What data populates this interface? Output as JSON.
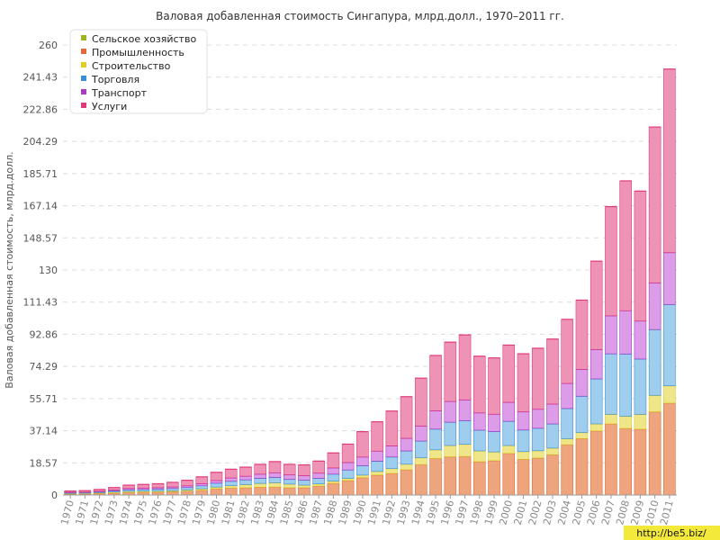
{
  "chart_data": {
    "type": "bar",
    "stacked": true,
    "title": "Валовая добавленная стоимость Сингапура, млрд.долл., 1970–2011 гг.",
    "ylabel": "Валовая добавленная стоимость, млрд.долл.",
    "xlabel": "",
    "ylim": [
      0,
      260
    ],
    "yticks": [
      "0",
      "18.57",
      "37.14",
      "55.71",
      "74.29",
      "92.86",
      "111.43",
      "130",
      "148.57",
      "167.14",
      "185.71",
      "204.29",
      "222.86",
      "241.43",
      "260"
    ],
    "grid": true,
    "legend_position": "top-left",
    "categories": [
      "1970",
      "1971",
      "1972",
      "1973",
      "1974",
      "1975",
      "1976",
      "1977",
      "1978",
      "1979",
      "1980",
      "1981",
      "1982",
      "1983",
      "1984",
      "1985",
      "1986",
      "1987",
      "1988",
      "1989",
      "1990",
      "1991",
      "1992",
      "1993",
      "1994",
      "1995",
      "1996",
      "1997",
      "1998",
      "1999",
      "2000",
      "2001",
      "2002",
      "2003",
      "2004",
      "2005",
      "2006",
      "2007",
      "2008",
      "2009",
      "2010",
      "2011"
    ],
    "series": [
      {
        "name": "Сельское хозяйство",
        "color": "#b6d62a",
        "border": "#9ab51f",
        "values": [
          0.1,
          0.1,
          0.1,
          0.1,
          0.1,
          0.1,
          0.1,
          0.1,
          0.1,
          0.1,
          0.1,
          0.1,
          0.1,
          0.1,
          0.1,
          0.1,
          0.1,
          0.1,
          0.1,
          0.1,
          0.1,
          0.1,
          0.1,
          0.1,
          0.1,
          0.1,
          0.1,
          0.1,
          0.1,
          0.1,
          0.1,
          0.1,
          0.1,
          0.1,
          0.1,
          0.1,
          0.1,
          0.1,
          0.1,
          0.1,
          0.1,
          0.1
        ]
      },
      {
        "name": "Промышленность",
        "color": "#eea47c",
        "border": "#e06a3c",
        "values": [
          0.5,
          0.6,
          0.8,
          1.1,
          1.4,
          1.5,
          1.6,
          1.8,
          2.1,
          2.7,
          3.5,
          4.0,
          4.1,
          4.4,
          4.5,
          4.1,
          4.2,
          5.1,
          6.7,
          8.3,
          10.0,
          11.5,
          12.4,
          14.5,
          17.5,
          21.0,
          22.0,
          22.2,
          19.2,
          19.8,
          24.0,
          20.5,
          21.3,
          23.2,
          29.0,
          32.5,
          37.0,
          41.0,
          38.4,
          38.0,
          48.0,
          53.0
        ]
      },
      {
        "name": "Строительство",
        "color": "#eee688",
        "border": "#dccd2a",
        "values": [
          0.3,
          0.3,
          0.4,
          0.5,
          0.6,
          0.6,
          0.6,
          0.6,
          0.7,
          0.8,
          1.0,
          1.3,
          1.8,
          2.2,
          2.5,
          2.1,
          1.4,
          1.2,
          1.2,
          1.2,
          1.4,
          2.0,
          2.8,
          3.2,
          3.9,
          5.0,
          6.5,
          7.0,
          6.2,
          5.0,
          4.5,
          4.5,
          4.2,
          3.8,
          3.4,
          3.5,
          4.0,
          5.5,
          7.0,
          8.5,
          9.5,
          10.0
        ]
      },
      {
        "name": "Торговля",
        "color": "#9fcdee",
        "border": "#3b8ed6",
        "values": [
          0.4,
          0.4,
          0.5,
          0.7,
          1.0,
          1.1,
          1.2,
          1.3,
          1.5,
          1.8,
          2.3,
          2.6,
          2.8,
          3.0,
          3.1,
          2.8,
          2.9,
          3.3,
          4.1,
          4.9,
          5.5,
          6.0,
          6.7,
          7.7,
          9.7,
          12.0,
          13.5,
          13.7,
          12.0,
          11.8,
          14.0,
          12.5,
          13.0,
          14.0,
          17.5,
          21.0,
          26.0,
          35.0,
          36.0,
          32.0,
          38.0,
          47.0
        ]
      },
      {
        "name": "Транспорт",
        "color": "#dd9ce8",
        "border": "#a63ec4",
        "values": [
          0.3,
          0.3,
          0.4,
          0.5,
          0.7,
          0.8,
          0.8,
          0.9,
          1.0,
          1.2,
          1.5,
          1.9,
          2.1,
          2.4,
          2.7,
          2.6,
          2.6,
          3.0,
          3.6,
          4.3,
          5.0,
          5.8,
          6.4,
          7.3,
          8.7,
          10.6,
          12.0,
          12.0,
          10.0,
          10.0,
          11.0,
          10.5,
          11.0,
          11.5,
          14.5,
          15.5,
          17.0,
          22.0,
          25.0,
          22.0,
          27.0,
          30.0
        ]
      },
      {
        "name": "Услуги",
        "color": "#ef93b6",
        "border": "#e03a7a",
        "values": [
          0.7,
          0.8,
          1.0,
          1.4,
          1.9,
          2.0,
          2.2,
          2.6,
          3.1,
          3.9,
          4.7,
          5.0,
          5.2,
          5.6,
          6.4,
          6.0,
          6.2,
          6.9,
          8.6,
          10.6,
          14.6,
          16.9,
          20.1,
          24.0,
          27.6,
          31.9,
          34.2,
          37.5,
          32.7,
          32.5,
          33.0,
          33.5,
          35.2,
          37.5,
          37.0,
          40.0,
          51.0,
          63.0,
          75.0,
          75.0,
          90.0,
          106.0
        ]
      }
    ]
  },
  "watermark": "http://be5.biz/"
}
